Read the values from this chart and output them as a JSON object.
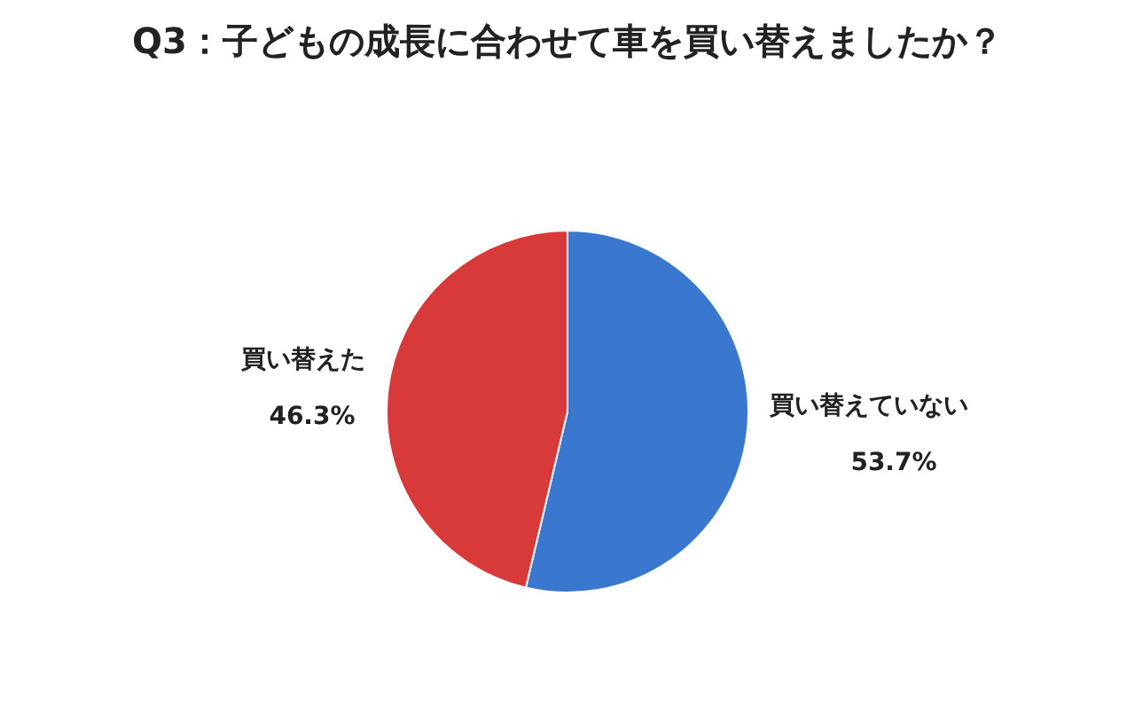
{
  "chart_data": {
    "type": "pie",
    "title": "Q3：子どもの成長に合わせて車を買い替えましたか？",
    "categories": [
      "買い替えていない",
      "買い替えた"
    ],
    "values": [
      53.7,
      46.3
    ],
    "colors": [
      "#3a78d0",
      "#d83a3a"
    ],
    "value_labels": [
      "53.7%",
      "46.3%"
    ],
    "legend": false
  }
}
